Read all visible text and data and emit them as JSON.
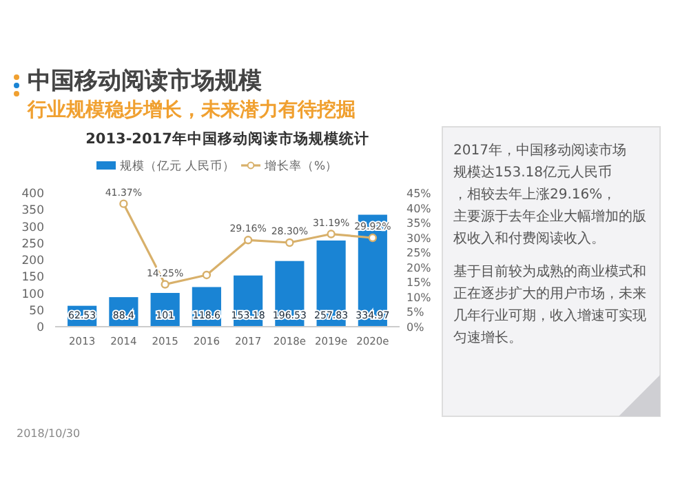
{
  "chart_data": {
    "type": "bar",
    "title": "2013-2017年中国移动阅读市场规模统计",
    "categories": [
      "2013",
      "2014",
      "2015",
      "2016",
      "2017",
      "2018e",
      "2019e",
      "2020e"
    ],
    "series": [
      {
        "name": "规模（亿元 人民币）",
        "color": "#1a84d4",
        "values": [
          62.53,
          88.4,
          101,
          118.6,
          153.18,
          196.53,
          257.83,
          334.97
        ],
        "value_labels": [
          "62.53",
          "88.4",
          "101",
          "118.6",
          "153.18",
          "196.53",
          "257.83",
          "334.97"
        ]
      },
      {
        "name": "增长率（%）",
        "type": "line",
        "axis": "y2",
        "color": "#d8b06a",
        "marker": "circle",
        "values": [
          null,
          41.37,
          14.25,
          17.4,
          29.16,
          28.3,
          31.19,
          29.92
        ],
        "value_labels": [
          null,
          "41.37%",
          "14.25%",
          null,
          "29.16%",
          "28.30%",
          "31.19%",
          "29.92%"
        ]
      }
    ],
    "ylim": [
      0,
      400
    ],
    "yticks": [
      0,
      50,
      100,
      150,
      200,
      250,
      300,
      350,
      400
    ],
    "y2lim": [
      0,
      45
    ],
    "y2ticks": [
      {
        "value": 0,
        "label": "0%"
      },
      {
        "value": 5,
        "label": "5%"
      },
      {
        "value": 10,
        "label": "10%"
      },
      {
        "value": 15,
        "label": "15%"
      },
      {
        "value": 20,
        "label": "20%"
      },
      {
        "value": 25,
        "label": "25%"
      },
      {
        "value": 30,
        "label": "30%"
      },
      {
        "value": 35,
        "label": "35%"
      },
      {
        "value": 40,
        "label": "40%"
      },
      {
        "value": 45,
        "label": "45%"
      }
    ],
    "legend": "top",
    "grid": false,
    "annotations": [
      "中国移动阅读市场规模",
      "行业规模稳步增长，未来潜力有待挖掘",
      "2017年，中国移动阅读市场规模达153.18亿元人民币，相较去年上涨29.16%，主要源于去年企业大幅增加的版权收入和付费阅读收入。",
      "基于目前较为成熟的商业模式和正在逐步扩大的用户市场，未来几年行业可期，收入增速可实现匀速增长。",
      "2018/10/30"
    ]
  }
}
